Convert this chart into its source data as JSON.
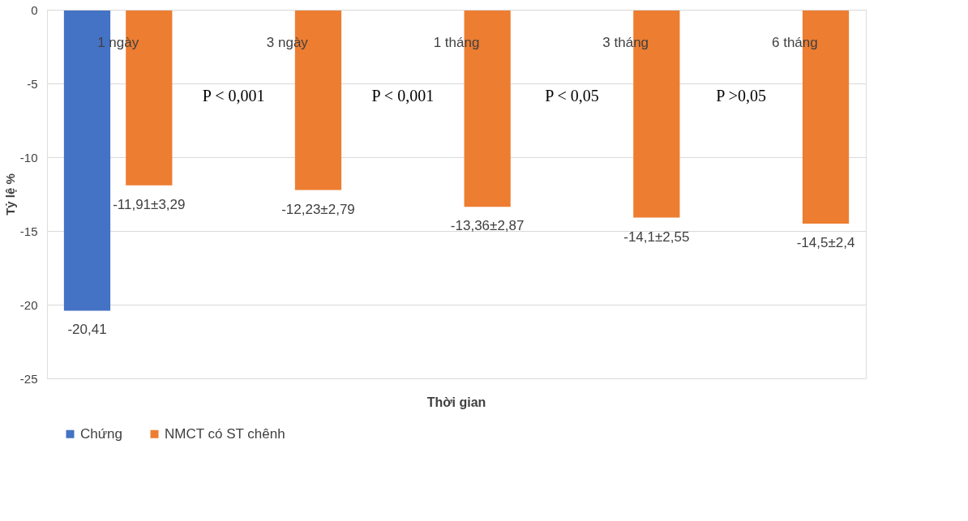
{
  "chart_data": {
    "type": "bar",
    "xlabel": "Thời gian",
    "ylabel": "Tỷ lệ %",
    "categories": [
      "1 ngày",
      "3 ngày",
      "1 tháng",
      "3 tháng",
      "6 tháng"
    ],
    "series": [
      {
        "name": "Chứng",
        "color": "#4472c4",
        "values": [
          -20.41,
          null,
          null,
          null,
          null
        ],
        "value_labels": [
          "-20,41",
          null,
          null,
          null,
          null
        ]
      },
      {
        "name": "NMCT có ST chênh",
        "color": "#ed7d31",
        "values": [
          -11.91,
          -12.23,
          -13.36,
          -14.1,
          -14.5
        ],
        "value_labels": [
          "-11,91±3,29",
          "-12,23±2,79",
          "-13,36±2,87",
          "-14,1±2,55",
          "-14,5±2,4"
        ]
      }
    ],
    "ylim": [
      -25,
      0
    ],
    "yticks": [
      0,
      -5,
      -10,
      -15,
      -20,
      -25
    ],
    "grid": "y",
    "legend": "bottom",
    "annotations": [
      "P < 0,001",
      "P < 0,001",
      "P < 0,05",
      "P >0,05"
    ]
  }
}
